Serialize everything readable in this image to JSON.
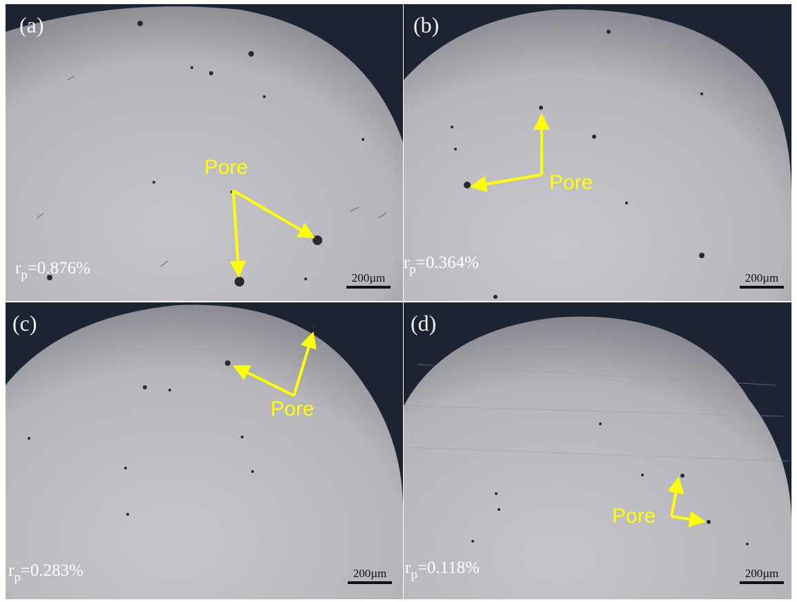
{
  "panels": [
    {
      "label": "(a)",
      "rp_symbol": "r",
      "rp_sub": "p",
      "rp_value": "=0.876%",
      "scale": "200µm",
      "pore": "Pore"
    },
    {
      "label": "(b)",
      "rp_symbol": "r",
      "rp_sub": "p",
      "rp_value": "=0.364%",
      "scale": "200µm",
      "pore": "Pore"
    },
    {
      "label": "(c)",
      "rp_symbol": "r",
      "rp_sub": "p",
      "rp_value": "=0.283%",
      "scale": "200µm",
      "pore": "Pore"
    },
    {
      "label": "(d)",
      "rp_symbol": "r",
      "rp_sub": "p",
      "rp_value": "=0.118%",
      "scale": "200µm",
      "pore": "Pore"
    }
  ],
  "colors": {
    "background": "#1c2331",
    "sample": "#b9b9bf",
    "annotation": "#ffff00",
    "pore": "#2a2a2e"
  }
}
